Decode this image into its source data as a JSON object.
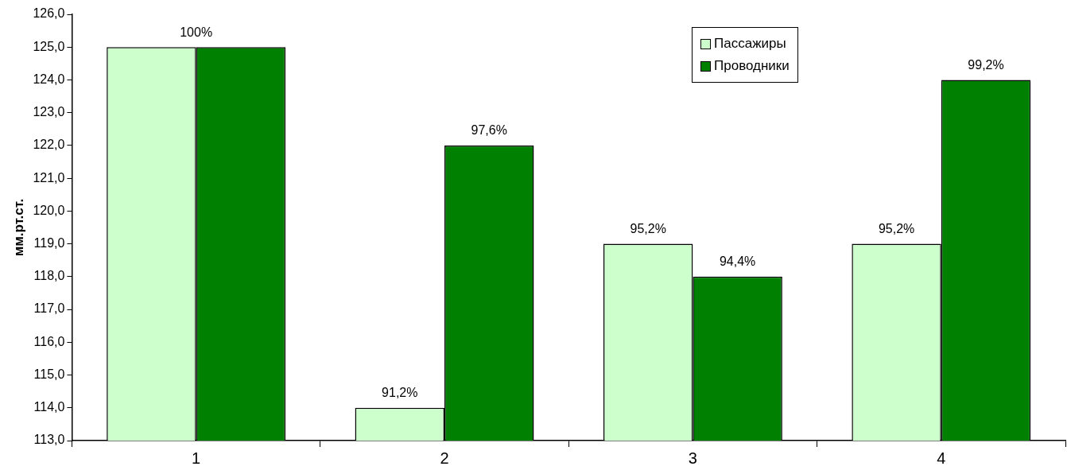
{
  "chart_data": {
    "type": "bar",
    "ylabel": "мм.рт.ст.",
    "categories": [
      "1",
      "2",
      "3",
      "4"
    ],
    "series": [
      {
        "name": "Пассажиры",
        "color": "#ccffcc",
        "values": [
          125,
          114,
          119,
          119
        ]
      },
      {
        "name": "Проводники",
        "color": "#008000",
        "values": [
          125,
          122,
          118,
          124
        ]
      }
    ],
    "annotations": [
      {
        "text": "100%",
        "x": "1",
        "y": 125
      },
      {
        "text": "91,2%",
        "x": "2",
        "y": 114
      },
      {
        "text": "97,6%",
        "x": "2",
        "y": 122
      },
      {
        "text": "95,2%",
        "x": "3",
        "y": 119
      },
      {
        "text": "94,4%",
        "x": "3",
        "y": 118
      },
      {
        "text": "95,2%",
        "x": "4",
        "y": 119
      },
      {
        "text": "99,2%",
        "x": "4",
        "y": 124
      }
    ],
    "ylim": [
      113,
      126
    ],
    "yticks": [
      {
        "value": 113,
        "label": "113,0"
      },
      {
        "value": 114,
        "label": "114,0"
      },
      {
        "value": 115,
        "label": "115,0"
      },
      {
        "value": 116,
        "label": "116,0"
      },
      {
        "value": 117,
        "label": "117,0"
      },
      {
        "value": 118,
        "label": "118,0"
      },
      {
        "value": 119,
        "label": "119,0"
      },
      {
        "value": 120,
        "label": "120,0"
      },
      {
        "value": 121,
        "label": "121,0"
      },
      {
        "value": 122,
        "label": "122,0"
      },
      {
        "value": 123,
        "label": "123,0"
      },
      {
        "value": 124,
        "label": "124,0"
      },
      {
        "value": 125,
        "label": "125,0"
      },
      {
        "value": 126,
        "label": "126,0"
      }
    ],
    "grid": false,
    "legend": "top right"
  }
}
